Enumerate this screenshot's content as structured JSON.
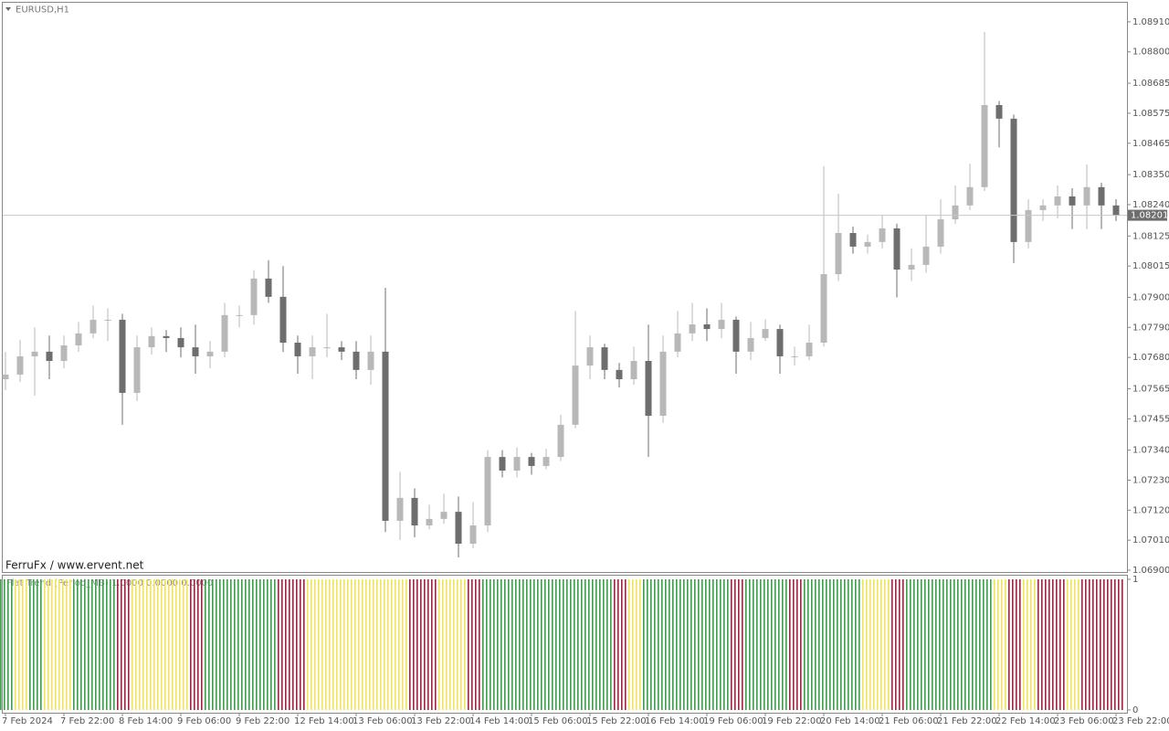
{
  "chart_data": [
    {
      "type": "candlestick",
      "title": "EURUSD,H1",
      "annotation": "FerruFx / www.ervent.net",
      "categories": [
        "7 Feb 2024",
        null,
        null,
        null,
        "7 Feb 22:00",
        null,
        null,
        null,
        "8 Feb 14:00",
        null,
        null,
        null,
        "9 Feb 06:00",
        null,
        null,
        null,
        "9 Feb 22:00",
        null,
        null,
        null,
        "12 Feb 14:00",
        null,
        null,
        null,
        "13 Feb 06:00",
        null,
        null,
        null,
        "13 Feb 22:00",
        null,
        null,
        null,
        "14 Feb 14:00",
        null,
        null,
        null,
        "15 Feb 06:00",
        null,
        null,
        null,
        "15 Feb 22:00",
        null,
        null,
        null,
        "16 Feb 14:00",
        null,
        null,
        null,
        "19 Feb 06:00",
        null,
        null,
        null,
        "19 Feb 22:00",
        null,
        null,
        null,
        "20 Feb 14:00",
        null,
        null,
        null,
        "21 Feb 06:00",
        null,
        null,
        null,
        "21 Feb 22:00",
        null,
        null,
        null,
        "22 Feb 14:00",
        null,
        null,
        null,
        "23 Feb 06:00",
        null,
        null,
        null,
        "23 Feb 22:00"
      ],
      "open": [
        1.076,
        1.07617,
        1.07684,
        1.07701,
        1.07667,
        1.07724,
        1.07768,
        1.07818,
        1.07818,
        1.0755,
        1.07717,
        1.07758,
        1.07751,
        1.07717,
        1.07684,
        1.07701,
        1.07835,
        1.07835,
        1.07969,
        1.07902,
        1.07734,
        1.07684,
        1.07717,
        1.07717,
        1.07701,
        1.07634,
        1.07701,
        1.07081,
        1.07165,
        1.07064,
        1.07088,
        1.07114,
        1.06997,
        1.07064,
        1.07315,
        1.07265,
        1.07315,
        1.07282,
        1.07315,
        1.07433,
        1.0765,
        1.07717,
        1.07634,
        1.076,
        1.07667,
        1.07466,
        1.07701,
        1.07768,
        1.07801,
        1.07784,
        1.07818,
        1.07701,
        1.07751,
        1.07784,
        1.07684,
        1.07684,
        1.07734,
        1.07985,
        1.08136,
        1.08086,
        1.08103,
        1.08153,
        1.08002,
        1.08019,
        1.08086,
        1.08186,
        1.08237,
        1.08304,
        1.08605,
        1.08555,
        1.08103,
        1.0822,
        1.08237,
        1.0827,
        1.08237,
        1.08304,
        1.08237
      ],
      "high": [
        1.077,
        1.07745,
        1.0779,
        1.0776,
        1.0776,
        1.0781,
        1.0787,
        1.0786,
        1.0784,
        1.0776,
        1.0779,
        1.0778,
        1.0779,
        1.078,
        1.0774,
        1.0788,
        1.0787,
        1.08,
        1.08036,
        1.08015,
        1.0776,
        1.0776,
        1.0784,
        1.0774,
        1.0774,
        1.0776,
        1.07935,
        1.0726,
        1.072,
        1.0714,
        1.0718,
        1.0717,
        1.0715,
        1.0734,
        1.0734,
        1.0735,
        1.0733,
        1.07345,
        1.0747,
        1.0785,
        1.0776,
        1.0773,
        1.0766,
        1.0772,
        1.078,
        1.0776,
        1.0785,
        1.0788,
        1.0786,
        1.0788,
        1.0783,
        1.0781,
        1.0782,
        1.078,
        1.0772,
        1.078,
        1.08381,
        1.0828,
        1.0816,
        1.0813,
        1.082,
        1.0817,
        1.0808,
        1.082,
        1.0826,
        1.0831,
        1.0839,
        1.08873,
        1.0862,
        1.0857,
        1.0826,
        1.0826,
        1.0831,
        1.083,
        1.08387,
        1.0832,
        1.0826
      ],
      "low": [
        1.0756,
        1.0759,
        1.0754,
        1.076,
        1.0764,
        1.077,
        1.0775,
        1.0774,
        1.07433,
        1.0752,
        1.0769,
        1.077,
        1.0768,
        1.0762,
        1.0764,
        1.0768,
        1.0779,
        1.078,
        1.0788,
        1.077,
        1.0762,
        1.076,
        1.0768,
        1.0767,
        1.076,
        1.0758,
        1.0704,
        1.0701,
        1.0702,
        1.0705,
        1.0707,
        1.06947,
        1.0698,
        1.0704,
        1.0724,
        1.0724,
        1.0725,
        1.0727,
        1.073,
        1.0742,
        1.076,
        1.076,
        1.0757,
        1.0758,
        1.07315,
        1.0744,
        1.0768,
        1.0774,
        1.0774,
        1.0775,
        1.0762,
        1.0767,
        1.0774,
        1.0762,
        1.0765,
        1.0767,
        1.0772,
        1.0796,
        1.0806,
        1.0806,
        1.0808,
        1.079,
        1.0796,
        1.0799,
        1.0806,
        1.0817,
        1.0822,
        1.0829,
        1.0845,
        1.08026,
        1.0808,
        1.0818,
        1.0819,
        1.0815,
        1.0815,
        1.0815,
        1.0818
      ],
      "close": [
        1.07617,
        1.07684,
        1.07701,
        1.07667,
        1.07724,
        1.07768,
        1.07818,
        1.07818,
        1.0755,
        1.07717,
        1.07758,
        1.07751,
        1.07717,
        1.07684,
        1.07701,
        1.07835,
        1.07835,
        1.07969,
        1.07902,
        1.07734,
        1.07684,
        1.07717,
        1.07717,
        1.07701,
        1.07634,
        1.07701,
        1.07081,
        1.07165,
        1.07064,
        1.07088,
        1.07114,
        1.06997,
        1.07064,
        1.07315,
        1.07265,
        1.07315,
        1.07282,
        1.07315,
        1.07433,
        1.0765,
        1.07717,
        1.07634,
        1.076,
        1.07667,
        1.07466,
        1.07701,
        1.07768,
        1.07801,
        1.07784,
        1.07818,
        1.07701,
        1.07751,
        1.07784,
        1.07684,
        1.07684,
        1.07734,
        1.07985,
        1.08136,
        1.08086,
        1.08103,
        1.08153,
        1.08002,
        1.08019,
        1.08086,
        1.08186,
        1.08237,
        1.08304,
        1.08605,
        1.08555,
        1.08103,
        1.0822,
        1.08237,
        1.0827,
        1.08237,
        1.08304,
        1.08237,
        1.08201
      ],
      "up_color": "#b8b8b8",
      "down_color": "#6e6e6e",
      "last_price": 1.08201,
      "ylim": [
        1.0689,
        1.0898
      ],
      "yticks": [
        {
          "value": 1.0891,
          "label": "1.08910"
        },
        {
          "value": 1.088,
          "label": "1.08800"
        },
        1.08685,
        1.08575,
        1.08465,
        {
          "value": 1.0835,
          "label": "1.08350"
        },
        {
          "value": 1.0824,
          "label": "1.08240"
        },
        1.08125,
        1.08015,
        {
          "value": 1.079,
          "label": "1.07900"
        },
        {
          "value": 1.0779,
          "label": "1.07790"
        },
        {
          "value": 1.0768,
          "label": "1.07680"
        },
        1.07565,
        1.07455,
        {
          "value": 1.0734,
          "label": "1.07340"
        },
        {
          "value": 1.0723,
          "label": "1.07230"
        },
        {
          "value": 1.0712,
          "label": "1.07120"
        },
        {
          "value": 1.0701,
          "label": "1.07010"
        },
        {
          "value": 1.069,
          "label": "1.06900"
        }
      ]
    },
    {
      "type": "bar",
      "title": "Flat Trend (Period_MB) 1.0000 0.0000 0.0000",
      "values": [
        1,
        1,
        1,
        1,
        1,
        1,
        1,
        1,
        1,
        1,
        1,
        1,
        1,
        1,
        1,
        1,
        1,
        1,
        1,
        1,
        1,
        1,
        1,
        1,
        1,
        1,
        1,
        1,
        1,
        1,
        1,
        1,
        1,
        1,
        1,
        1,
        1,
        1,
        1,
        1,
        1,
        1,
        1,
        1,
        1,
        1,
        1,
        1,
        1,
        1,
        1,
        1,
        1,
        1,
        1,
        1,
        1,
        1,
        1,
        1,
        1,
        1,
        1,
        1,
        1,
        1,
        1,
        1,
        1,
        1,
        1,
        1,
        1,
        1,
        1,
        1,
        1
      ],
      "colors": [
        "#3a9e4a",
        "#f2e35a",
        "#3a9e4a",
        "#f2e35a",
        "#f2e35a",
        "#3a9e4a",
        "#3a9e4a",
        "#3a9e4a",
        "#a3203f",
        "#f2e35a",
        "#f2e35a",
        "#f2e35a",
        "#f2e35a",
        "#a3203f",
        "#3a9e4a",
        "#3a9e4a",
        "#3a9e4a",
        "#3a9e4a",
        "#3a9e4a",
        "#a3203f",
        "#a3203f",
        "#f2e35a",
        "#f2e35a",
        "#f2e35a",
        "#f2e35a",
        "#f2e35a",
        "#f2e35a",
        "#f2e35a",
        "#a3203f",
        "#a3203f",
        "#f2e35a",
        "#f2e35a",
        "#a3203f",
        "#3a9e4a",
        "#3a9e4a",
        "#3a9e4a",
        "#3a9e4a",
        "#3a9e4a",
        "#3a9e4a",
        "#3a9e4a",
        "#3a9e4a",
        "#3a9e4a",
        "#a3203f",
        "#f2e35a",
        "#3a9e4a",
        "#3a9e4a",
        "#3a9e4a",
        "#3a9e4a",
        "#3a9e4a",
        "#3a9e4a",
        "#a3203f",
        "#3a9e4a",
        "#3a9e4a",
        "#3a9e4a",
        "#a3203f",
        "#3a9e4a",
        "#3a9e4a",
        "#3a9e4a",
        "#3a9e4a",
        "#f2e35a",
        "#f2e35a",
        "#a3203f",
        "#3a9e4a",
        "#3a9e4a",
        "#3a9e4a",
        "#3a9e4a",
        "#3a9e4a",
        "#3a9e4a",
        "#f2e35a",
        "#a3203f",
        "#f2e35a",
        "#a3203f",
        "#a3203f",
        "#f2e35a",
        "#a3203f",
        "#a3203f",
        "#a3203f"
      ],
      "ylim": [
        0,
        1
      ],
      "yticks": [
        0,
        1
      ]
    }
  ]
}
